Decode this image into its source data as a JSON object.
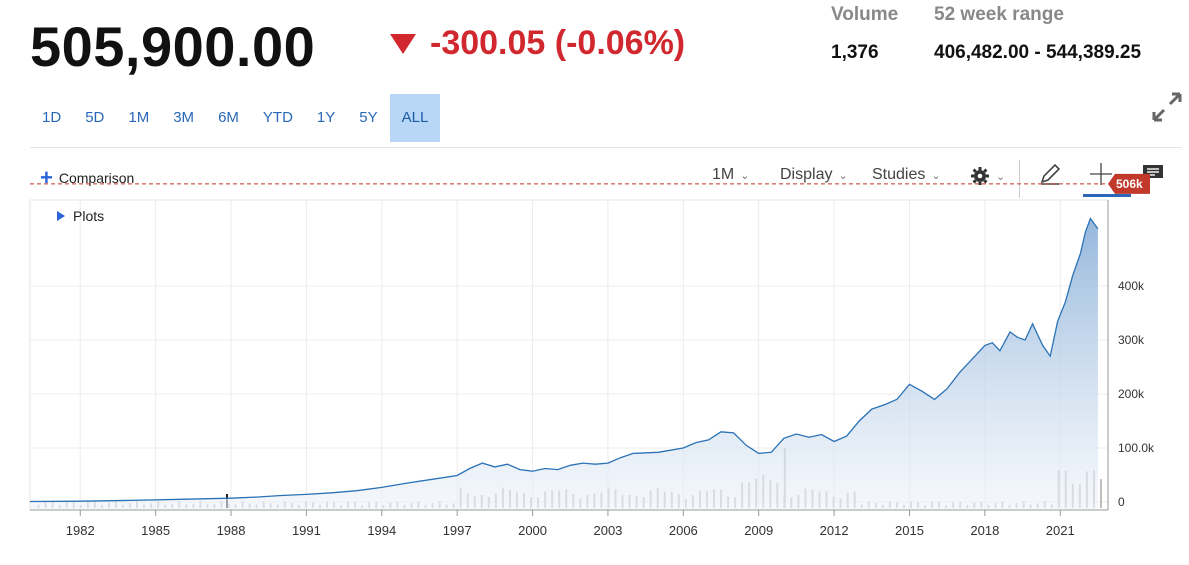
{
  "quote": {
    "price": "505,900.00",
    "change": "-300.05 (-0.06%)",
    "volume_label": "Volume",
    "volume_value": "1,376",
    "range_label": "52 week range",
    "range_value": "406,482.00 - 544,389.25",
    "down_color": "#d0282e"
  },
  "range_tabs": [
    {
      "label": "1D"
    },
    {
      "label": "5D"
    },
    {
      "label": "1M"
    },
    {
      "label": "3M"
    },
    {
      "label": "6M"
    },
    {
      "label": "YTD"
    },
    {
      "label": "1Y"
    },
    {
      "label": "5Y"
    },
    {
      "label": "ALL",
      "active": true
    }
  ],
  "toolbar": {
    "comparison_label": "Comparison",
    "interval_label": "1M",
    "display_label": "Display",
    "studies_label": "Studies",
    "plots_label": "Plots",
    "settings_icon": "gear-icon",
    "draw_icon": "pencil-icon",
    "crosshair_icon": "crosshair-icon",
    "comment_icon": "comment-icon",
    "expand_icon": "expand-icon"
  },
  "chart_data": {
    "type": "area",
    "x_tick_labels": [
      "1982",
      "1985",
      "1988",
      "1991",
      "1994",
      "1997",
      "2000",
      "2003",
      "2006",
      "2009",
      "2012",
      "2015",
      "2018",
      "2021"
    ],
    "y_tick_labels": [
      "0",
      "100.0k",
      "200k",
      "300k",
      "400k"
    ],
    "ylim": [
      0,
      560000
    ],
    "xlim": [
      1980.0,
      2022.9
    ],
    "last_price_label": "506k",
    "last_price": 505900,
    "line_color": "#2a72b5",
    "marker_color": "#c0392b",
    "series": [
      {
        "x": [
          1980.0,
          1982,
          1984,
          1986,
          1988,
          1989,
          1990,
          1991,
          1992,
          1993,
          1994,
          1995,
          1996,
          1997,
          1997.5,
          1998,
          1998.5,
          1999,
          1999.5,
          2000,
          2000.5,
          2001,
          2001.5,
          2002,
          2002.5,
          2003,
          2003.5,
          2004,
          2005,
          2006,
          2006.5,
          2007,
          2007.5,
          2008,
          2008.5,
          2009,
          2009.5,
          2010,
          2010.5,
          2011,
          2011.5,
          2012,
          2012.5,
          2013,
          2013.5,
          2014,
          2014.5,
          2015,
          2015.5,
          2016,
          2016.5,
          2017,
          2017.5,
          2018,
          2018.3,
          2018.6,
          2019,
          2019.3,
          2019.6,
          2019.9,
          2020.1,
          2020.3,
          2020.6,
          2020.9,
          2021.2,
          2021.5,
          2021.8,
          2022.0,
          2022.2,
          2022.5
        ],
        "y": [
          1000,
          1500,
          3000,
          5000,
          7000,
          9000,
          12000,
          14000,
          17000,
          21000,
          27000,
          35000,
          42000,
          49000,
          62000,
          72000,
          65000,
          70000,
          60000,
          57000,
          62000,
          60000,
          68000,
          72000,
          70000,
          72000,
          82000,
          90000,
          92000,
          100000,
          110000,
          115000,
          130000,
          128000,
          105000,
          90000,
          92000,
          118000,
          126000,
          120000,
          125000,
          112000,
          122000,
          150000,
          172000,
          180000,
          190000,
          218000,
          205000,
          190000,
          210000,
          240000,
          265000,
          290000,
          295000,
          280000,
          315000,
          305000,
          300000,
          330000,
          310000,
          290000,
          270000,
          335000,
          370000,
          420000,
          460000,
          500000,
          525000,
          505900
        ]
      }
    ],
    "volume": {
      "note_color": "#bdbdbd"
    }
  }
}
